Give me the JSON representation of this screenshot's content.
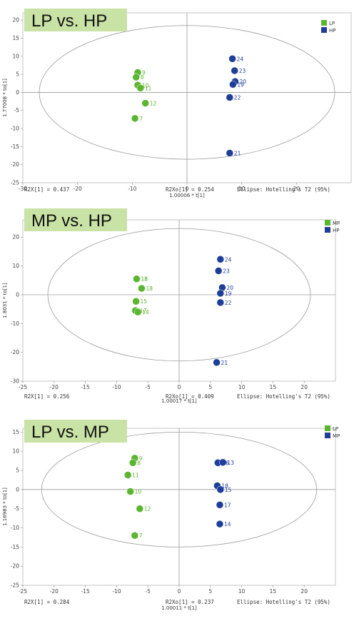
{
  "colors": {
    "LP": "#5cb531",
    "MP": "#5cb531",
    "HP": "#1e3e99",
    "LP_mp": "#5cb531",
    "MP_blue": "#1e3e99",
    "title_bg": "#c9e2a5"
  },
  "chart_data": [
    {
      "type": "scatter",
      "title": "LP vs. HP",
      "xlabel": "1.00006 * t[1]",
      "ylabel": "1.77008 * to[1]",
      "xlim": [
        -30,
        30
      ],
      "ylim": [
        -25,
        22
      ],
      "xticks": [
        -30,
        -20,
        -10,
        0,
        10,
        20
      ],
      "yticks": [
        -25,
        -20,
        -15,
        -10,
        -5,
        0,
        5,
        10,
        15,
        20
      ],
      "ellipse": {
        "rx": 27,
        "ry": 18.5
      },
      "footer": [
        "R2X[1] = 0.437",
        "R2Xo[1] = 0.254",
        "Ellipse: Hotelling's T2 (95%)"
      ],
      "legend": [
        "LP",
        "HP"
      ],
      "series": [
        {
          "name": "LP",
          "color": "#5cb531",
          "labelColor": "#5cb531",
          "points": [
            {
              "x": -9.0,
              "y": 5.5,
              "label": "9"
            },
            {
              "x": -9.3,
              "y": 4.2,
              "label": "8"
            },
            {
              "x": -9.0,
              "y": 2.0,
              "label": "10"
            },
            {
              "x": -8.5,
              "y": 1.2,
              "label": "11"
            },
            {
              "x": -7.6,
              "y": -3.0,
              "label": "12"
            },
            {
              "x": -9.5,
              "y": -7.2,
              "label": "7"
            }
          ]
        },
        {
          "name": "HP",
          "color": "#1e3e99",
          "labelColor": "#1e3e99",
          "points": [
            {
              "x": 8.3,
              "y": 9.3,
              "label": "24"
            },
            {
              "x": 8.7,
              "y": 6.0,
              "label": "23"
            },
            {
              "x": 8.8,
              "y": 3.0,
              "label": "20"
            },
            {
              "x": 8.4,
              "y": 2.2,
              "label": "19"
            },
            {
              "x": 7.8,
              "y": -1.4,
              "label": "22"
            },
            {
              "x": 7.8,
              "y": -16.8,
              "label": "21"
            }
          ]
        }
      ]
    },
    {
      "type": "scatter",
      "title": "MP vs. HP",
      "xlabel": "1.00017 * t[1]",
      "ylabel": "1.8031 * to[1]",
      "xlim": [
        -25,
        25
      ],
      "ylim": [
        -30,
        26
      ],
      "xticks": [
        -25,
        -20,
        -15,
        -10,
        -5,
        0,
        5,
        10,
        15,
        20
      ],
      "yticks": [
        -30,
        -20,
        -10,
        0,
        10,
        20
      ],
      "ellipse": {
        "rx": 21,
        "ry": 23
      },
      "footer": [
        "R2X[1] = 0.256",
        "R2Xo[1] = 0.409",
        "Ellipse: Hotelling's T2 (95%)"
      ],
      "legend": [
        "MP",
        "HP"
      ],
      "series": [
        {
          "name": "MP",
          "color": "#5cb531",
          "labelColor": "#5cb531",
          "points": [
            {
              "x": -6.8,
              "y": 5.5,
              "label": "13"
            },
            {
              "x": -6.8,
              "y": 5.5,
              "label": "16"
            },
            {
              "x": -6.0,
              "y": 2.2,
              "label": "18"
            },
            {
              "x": -6.9,
              "y": -2.3,
              "label": "15"
            },
            {
              "x": -7.0,
              "y": -5.5,
              "label": "17"
            },
            {
              "x": -6.6,
              "y": -6.0,
              "label": "14"
            }
          ]
        },
        {
          "name": "HP",
          "color": "#1e3e99",
          "labelColor": "#1e3e99",
          "points": [
            {
              "x": 6.6,
              "y": 12.3,
              "label": "24"
            },
            {
              "x": 6.3,
              "y": 8.3,
              "label": "23"
            },
            {
              "x": 6.9,
              "y": 2.5,
              "label": "20"
            },
            {
              "x": 6.6,
              "y": 0.5,
              "label": "19"
            },
            {
              "x": 6.6,
              "y": -2.7,
              "label": "22"
            },
            {
              "x": 6.0,
              "y": -23.5,
              "label": "21"
            }
          ]
        }
      ]
    },
    {
      "type": "scatter",
      "title": "LP vs. MP",
      "xlabel": "1.00011 * t[1]",
      "ylabel": "1.16983 * to[1]",
      "xlim": [
        -25,
        25
      ],
      "ylim": [
        -25,
        16
      ],
      "xticks": [
        -25,
        -20,
        -15,
        -10,
        -5,
        0,
        5,
        10,
        15,
        20
      ],
      "yticks": [
        -25,
        -20,
        -15,
        -10,
        -5,
        0,
        5,
        10,
        15
      ],
      "ellipse": {
        "rx": 22,
        "ry": 15
      },
      "footer": [
        "R2X[1] = 0.284",
        "R2Xo[1] = 0.237",
        "Ellipse: Hotelling's T2 (95%)"
      ],
      "legend": [
        "LP",
        "MP"
      ],
      "series": [
        {
          "name": "LP",
          "color": "#5cb531",
          "labelColor": "#5cb531",
          "points": [
            {
              "x": -7.1,
              "y": 8.2,
              "label": "9"
            },
            {
              "x": -7.4,
              "y": 7.0,
              "label": "8"
            },
            {
              "x": -8.2,
              "y": 3.8,
              "label": "11"
            },
            {
              "x": -7.8,
              "y": -0.5,
              "label": "10"
            },
            {
              "x": -6.3,
              "y": -5.0,
              "label": "12"
            },
            {
              "x": -7.1,
              "y": -12.0,
              "label": "7"
            }
          ]
        },
        {
          "name": "MP",
          "color": "#1e3e99",
          "labelColor": "#1e3e99",
          "points": [
            {
              "x": 6.2,
              "y": 7.0,
              "label": "16"
            },
            {
              "x": 7.0,
              "y": 7.1,
              "label": "13"
            },
            {
              "x": 6.1,
              "y": 1.0,
              "label": "18"
            },
            {
              "x": 6.6,
              "y": 0.0,
              "label": "15"
            },
            {
              "x": 6.5,
              "y": -4.0,
              "label": "17"
            },
            {
              "x": 6.5,
              "y": -9.0,
              "label": "14"
            }
          ]
        }
      ]
    }
  ]
}
